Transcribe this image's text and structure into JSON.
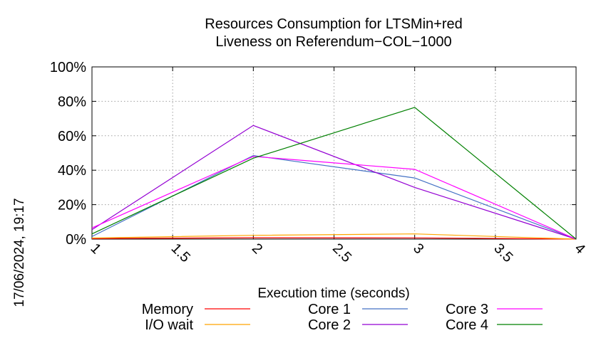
{
  "chart_data": {
    "type": "line",
    "title": [
      "Resources Consumption for LTSMin+red",
      "Liveness on Referendum−COL−1000"
    ],
    "xlabel": "Execution time (seconds)",
    "ylabel": "",
    "xlim": [
      1,
      4
    ],
    "ylim": [
      0,
      100
    ],
    "x_ticks": [
      "1",
      "1.5",
      "2",
      "2.5",
      "3",
      "3.5",
      "4"
    ],
    "y_ticks": [
      "0%",
      "20%",
      "40%",
      "60%",
      "80%",
      "100%"
    ],
    "grid": true,
    "legend_position": "bottom",
    "series": [
      {
        "name": "Memory",
        "color": "#ff0000",
        "x": [
          1,
          2,
          3,
          4
        ],
        "y": [
          0.3,
          0.8,
          0.7,
          0
        ]
      },
      {
        "name": "I/O wait",
        "color": "#ffa500",
        "x": [
          1,
          2,
          3,
          4
        ],
        "y": [
          0.6,
          2.2,
          3.0,
          0
        ]
      },
      {
        "name": "Core 1",
        "color": "#4472c4",
        "x": [
          1,
          2,
          3,
          4
        ],
        "y": [
          1.5,
          48.5,
          35.5,
          0
        ]
      },
      {
        "name": "Core 2",
        "color": "#9400d3",
        "x": [
          1,
          2,
          3,
          4
        ],
        "y": [
          5.5,
          66,
          30,
          0
        ]
      },
      {
        "name": "Core 3",
        "color": "#ff00ff",
        "x": [
          1,
          2,
          3,
          4
        ],
        "y": [
          6.5,
          48,
          40.5,
          0
        ]
      },
      {
        "name": "Core 4",
        "color": "#008000",
        "x": [
          1,
          2,
          3,
          4
        ],
        "y": [
          3,
          47,
          76.5,
          0
        ]
      }
    ]
  },
  "timestamp": "17/06/2024, 19:17"
}
